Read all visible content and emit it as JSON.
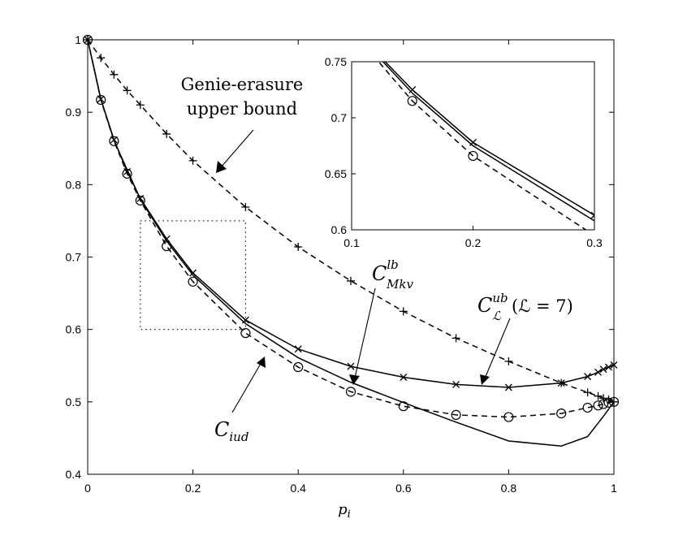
{
  "chart_data": {
    "type": "line",
    "xlabel": "p",
    "xlabel_sub": "i",
    "ylabel": "",
    "xlim": [
      0,
      1
    ],
    "ylim": [
      0.4,
      1
    ],
    "x_ticks": [
      "0",
      "0.2",
      "0.4",
      "0.6",
      "0.8",
      "1"
    ],
    "y_ticks": [
      "0.4",
      "0.5",
      "0.6",
      "0.7",
      "0.8",
      "0.9",
      "1"
    ],
    "grid": false,
    "series": [
      {
        "name": "Genie-erasure upper bound",
        "line": "dashed",
        "marker": "plus",
        "x": [
          0,
          0.025,
          0.05,
          0.075,
          0.1,
          0.15,
          0.2,
          0.3,
          0.4,
          0.5,
          0.6,
          0.7,
          0.8,
          0.9,
          0.95,
          0.97,
          0.98,
          0.99,
          1
        ],
        "y": [
          1,
          0.975,
          0.952,
          0.93,
          0.91,
          0.87,
          0.833,
          0.769,
          0.714,
          0.667,
          0.625,
          0.588,
          0.556,
          0.526,
          0.513,
          0.508,
          0.505,
          0.503,
          0.5
        ]
      },
      {
        "name": "C_Mkv^lb",
        "line": "solid",
        "marker": "x",
        "x": [
          0,
          0.025,
          0.05,
          0.075,
          0.1,
          0.15,
          0.2,
          0.3,
          0.4,
          0.5,
          0.6,
          0.7,
          0.8,
          0.9,
          0.95,
          0.97,
          0.98,
          0.99,
          1
        ],
        "y": [
          1,
          0.918,
          0.862,
          0.818,
          0.781,
          0.725,
          0.678,
          0.613,
          0.573,
          0.549,
          0.534,
          0.524,
          0.52,
          0.526,
          0.535,
          0.541,
          0.545,
          0.548,
          0.551
        ]
      },
      {
        "name": "C_iud",
        "line": "dashed",
        "marker": "circle",
        "x": [
          0,
          0.025,
          0.05,
          0.075,
          0.1,
          0.15,
          0.2,
          0.3,
          0.4,
          0.5,
          0.6,
          0.7,
          0.8,
          0.9,
          0.95,
          0.97,
          0.98,
          0.99,
          1
        ],
        "y": [
          1,
          0.917,
          0.86,
          0.815,
          0.778,
          0.715,
          0.666,
          0.595,
          0.548,
          0.514,
          0.494,
          0.482,
          0.479,
          0.484,
          0.492,
          0.495,
          0.497,
          0.499,
          0.5
        ]
      },
      {
        "name": "C_L^ub (L = 7)",
        "line": "solid",
        "marker": "none",
        "x": [
          0,
          0.025,
          0.05,
          0.1,
          0.15,
          0.2,
          0.3,
          0.4,
          0.5,
          0.6,
          0.7,
          0.8,
          0.9,
          0.95,
          0.98,
          1
        ],
        "y": [
          1,
          0.918,
          0.861,
          0.78,
          0.722,
          0.675,
          0.608,
          0.561,
          0.527,
          0.499,
          0.472,
          0.446,
          0.439,
          0.452,
          0.48,
          0.5
        ]
      }
    ],
    "highlight_box": {
      "x": [
        0.1,
        0.3
      ],
      "y": [
        0.6,
        0.75
      ]
    },
    "inset": {
      "xlim": [
        0.1,
        0.3
      ],
      "ylim": [
        0.6,
        0.75
      ],
      "x_ticks": [
        "0.1",
        "0.2",
        "0.3"
      ],
      "y_ticks": [
        "0.6",
        "0.65",
        "0.7",
        "0.75"
      ]
    },
    "annotations": {
      "genie_line1": "Genie-erasure",
      "genie_line2": "upper bound",
      "mkv_base": "C",
      "mkv_sup": "lb",
      "mkv_sub": "Mkv",
      "iud_base": "C",
      "iud_sub": "iud",
      "ub_base": "C",
      "ub_sup": "ub",
      "ub_sub": "ℒ",
      "ub_param": "(ℒ = 7)"
    }
  }
}
